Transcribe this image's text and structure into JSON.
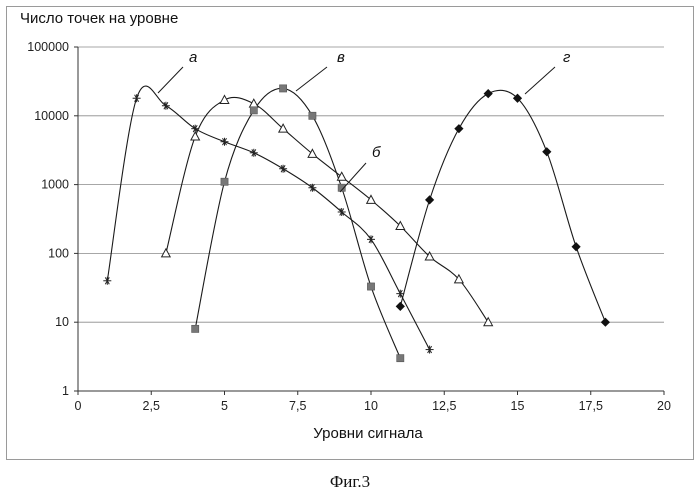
{
  "chart_data": {
    "type": "line",
    "ylabel": "Число точек на уровне",
    "xlabel": "Уровни сигнала",
    "caption": "Фиг.3",
    "x_ticks": [
      "0",
      "2,5",
      "5",
      "7,5",
      "10",
      "12,5",
      "15",
      "17,5",
      "20"
    ],
    "y_ticks": [
      "1",
      "10",
      "100",
      "1000",
      "10000",
      "100000"
    ],
    "xlim": [
      0,
      20
    ],
    "ylim": [
      1,
      100000
    ],
    "y_scale": "log",
    "grid": "horizontal",
    "series": [
      {
        "name": "а",
        "marker": "star",
        "color": "#222222",
        "x": [
          1,
          2,
          3,
          4,
          5,
          6,
          7,
          8,
          9,
          10,
          11,
          12
        ],
        "y": [
          40,
          18000,
          14000,
          6500,
          4200,
          2900,
          1700,
          900,
          400,
          160,
          26,
          4
        ]
      },
      {
        "name": "б",
        "marker": "triangle",
        "color": "#222222",
        "x": [
          3,
          4,
          5,
          6,
          7,
          8,
          9,
          10,
          11,
          12,
          13,
          14
        ],
        "y": [
          100,
          5000,
          17000,
          15000,
          6500,
          2800,
          1300,
          600,
          250,
          90,
          42,
          10
        ]
      },
      {
        "name": "в",
        "marker": "square",
        "color": "#777777",
        "x": [
          4,
          5,
          6,
          7,
          8,
          9,
          10,
          11
        ],
        "y": [
          8,
          1100,
          12000,
          25000,
          10000,
          900,
          33,
          3
        ]
      },
      {
        "name": "г",
        "marker": "diamond",
        "color": "#111111",
        "x": [
          11,
          12,
          13,
          14,
          15,
          16,
          17,
          18
        ],
        "y": [
          17,
          600,
          6500,
          21000,
          18000,
          3000,
          125,
          10
        ]
      }
    ]
  }
}
